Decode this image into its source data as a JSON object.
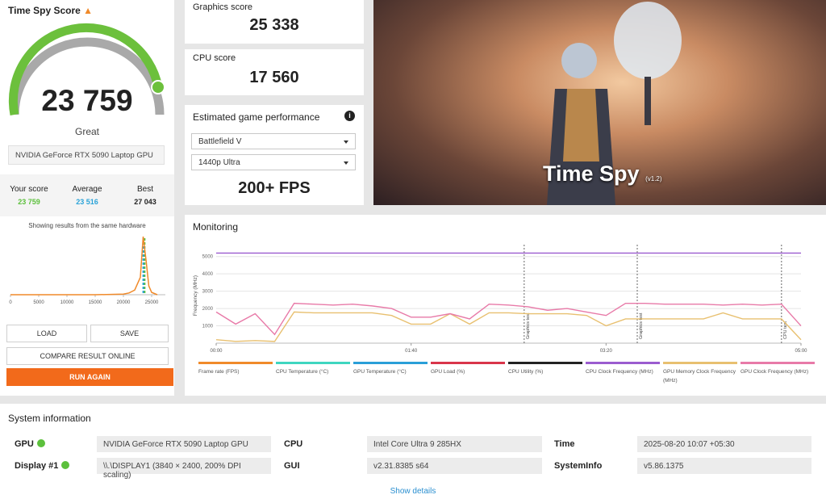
{
  "score_panel": {
    "title": "Time Spy Score",
    "score": "23 759",
    "rating": "Great",
    "gpu": "NVIDIA GeForce RTX 5090 Laptop GPU"
  },
  "comparison": {
    "labels": [
      "Your score",
      "Average",
      "Best"
    ],
    "values": [
      "23 759",
      "23 516",
      "27 043"
    ],
    "colors": [
      "#5cc03c",
      "#2aa3d8",
      "#222222"
    ]
  },
  "distribution": {
    "caption": "Showing results from the same hardware",
    "xlim": [
      0,
      27000
    ],
    "xticks": [
      0,
      5000,
      10000,
      15000,
      20000,
      25000
    ],
    "x": [
      0,
      5000,
      10000,
      15000,
      20000,
      21000,
      22000,
      23000,
      23500,
      24000,
      24500,
      25000,
      26000
    ],
    "values": [
      0,
      0,
      0,
      0,
      1,
      3,
      8,
      30,
      100,
      60,
      15,
      4,
      0
    ],
    "color": "#f08a2a",
    "markers": [
      {
        "value": 23759,
        "color": "#5cc03c"
      },
      {
        "value": 23516,
        "color": "#2aa3d8"
      }
    ]
  },
  "buttons": [
    "LOAD",
    "SAVE",
    "COMPARE RESULT ONLINE",
    "RUN AGAIN"
  ],
  "graphics_score": {
    "label": "Graphics score",
    "value": "25 338"
  },
  "cpu_score": {
    "label": "CPU score",
    "value": "17 560"
  },
  "game_performance": {
    "title": "Estimated game performance",
    "game": "Battlefield V",
    "preset": "1440p Ultra",
    "fps": "200+ FPS"
  },
  "hero": {
    "title": "Time Spy",
    "version": "(v1.2)"
  },
  "monitoring": {
    "title": "Monitoring",
    "y_label": "Frequency (MHz)",
    "ylim": [
      0,
      5500
    ],
    "yticks": [
      1000,
      2000,
      3000,
      4000,
      5000
    ],
    "xlim": [
      0,
      300
    ],
    "xticks": [
      {
        "value": 0,
        "label": "00:00"
      },
      {
        "value": 100,
        "label": "01:40"
      },
      {
        "value": 200,
        "label": "03:20"
      },
      {
        "value": 300,
        "label": "05:00"
      }
    ],
    "phases": [
      {
        "x": 158,
        "label": "Graphics test"
      },
      {
        "x": 216,
        "label": "Graphics test"
      },
      {
        "x": 290,
        "label": "CPU test"
      }
    ],
    "x": [
      0,
      10,
      20,
      30,
      40,
      50,
      60,
      70,
      80,
      90,
      100,
      110,
      120,
      130,
      140,
      150,
      160,
      170,
      180,
      190,
      200,
      210,
      220,
      230,
      240,
      250,
      260,
      270,
      280,
      290,
      300
    ],
    "series": [
      {
        "name": "Frame rate (FPS)",
        "color": "#f08a2a"
      },
      {
        "name": "CPU Temperature (°C)",
        "color": "#3fd6c0"
      },
      {
        "name": "GPU Temperature (°C)",
        "color": "#2a9fd8"
      },
      {
        "name": "GPU Load (%)",
        "color": "#d9354a"
      },
      {
        "name": "CPU Utility (%)",
        "color": "#222222"
      },
      {
        "name": "CPU Clock Frequency (MHz)",
        "color": "#9b5ccf",
        "values": [
          5200,
          5200,
          5200,
          5200,
          5200,
          5200,
          5200,
          5200,
          5200,
          5200,
          5200,
          5200,
          5200,
          5200,
          5200,
          5200,
          5200,
          5200,
          5200,
          5200,
          5200,
          5200,
          5200,
          5200,
          5200,
          5200,
          5200,
          5200,
          5200,
          5200,
          5200
        ]
      },
      {
        "name": "GPU Memory Clock Frequency (MHz)",
        "color": "#e8c070",
        "values": [
          200,
          100,
          150,
          100,
          1800,
          1750,
          1750,
          1750,
          1750,
          1600,
          1100,
          1100,
          1700,
          1100,
          1750,
          1750,
          1700,
          1700,
          1700,
          1600,
          1000,
          1400,
          1400,
          1400,
          1400,
          1400,
          1750,
          1400,
          1400,
          1400,
          200
        ]
      },
      {
        "name": "GPU Clock Frequency (MHz)",
        "color": "#e87aa8",
        "values": [
          1800,
          1100,
          1700,
          500,
          2300,
          2250,
          2200,
          2250,
          2150,
          2000,
          1500,
          1500,
          1700,
          1400,
          2250,
          2200,
          2100,
          1900,
          2000,
          1800,
          1600,
          2300,
          2300,
          2250,
          2250,
          2250,
          2200,
          2250,
          2200,
          2250,
          1000
        ]
      }
    ]
  },
  "system_info": {
    "title": "System information",
    "rows": [
      [
        [
          "GPU",
          "NVIDIA GeForce RTX 5090 Laptop GPU"
        ],
        [
          "CPU",
          "Intel Core Ultra 9 285HX"
        ],
        [
          "Time",
          "2025-08-20 10:07 +05:30"
        ]
      ],
      [
        [
          "Display #1",
          "\\\\.\\DISPLAY1 (3840 × 2400, 200% DPI scaling)"
        ],
        [
          "GUI",
          "v2.31.8385 s64"
        ],
        [
          "SystemInfo",
          "v5.86.1375"
        ]
      ]
    ],
    "link": "Show details"
  }
}
